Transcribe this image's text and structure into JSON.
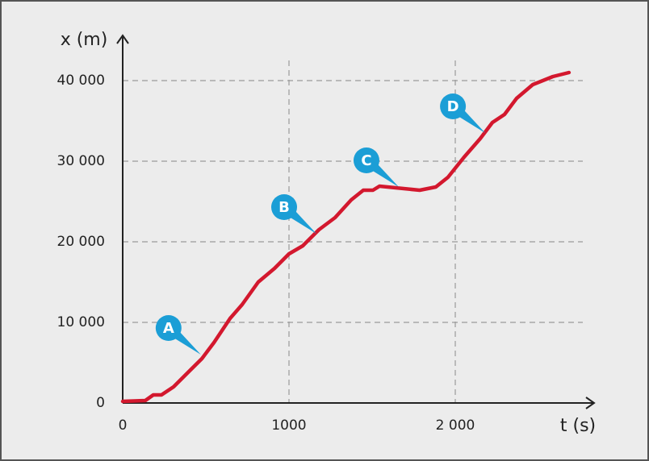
{
  "chart_data": {
    "type": "line",
    "x_label": "t (s)",
    "y_label": "x (m)",
    "x": [
      0,
      136,
      184,
      233,
      306,
      403,
      476,
      549,
      646,
      718,
      815,
      913,
      1000,
      1083,
      1180,
      1277,
      1374,
      1447,
      1505,
      1544,
      1641,
      1786,
      1883,
      1956,
      2053,
      2150,
      2223,
      2296,
      2369,
      2466,
      2587,
      2684
    ],
    "values": [
      200,
      300,
      1000,
      1000,
      2000,
      4000,
      5500,
      7500,
      10500,
      12200,
      15000,
      16700,
      18500,
      19500,
      21500,
      23000,
      25200,
      26400,
      26400,
      26900,
      26700,
      26400,
      26800,
      28000,
      30500,
      32800,
      34800,
      35800,
      37800,
      39500,
      40500,
      41000
    ],
    "color": "#d3182e",
    "xlim": [
      0,
      2830
    ],
    "ylim": [
      0,
      45500
    ],
    "xticks": [
      0,
      1000,
      {
        "value": 2000,
        "label": "2 000"
      }
    ],
    "yticks": [
      0,
      {
        "value": 10000,
        "label": "10 000"
      },
      {
        "value": 20000,
        "label": "20 000"
      },
      {
        "value": 30000,
        "label": "30 000"
      },
      {
        "value": 40000,
        "label": "40 000"
      }
    ],
    "grid": true,
    "annotations": [
      {
        "text": "A",
        "t": 470,
        "x": 6000
      },
      {
        "text": "B",
        "t": 1165,
        "x": 21000
      },
      {
        "text": "C",
        "t": 1660,
        "x": 26800
      },
      {
        "text": "D",
        "t": 2180,
        "x": 33500
      }
    ]
  }
}
